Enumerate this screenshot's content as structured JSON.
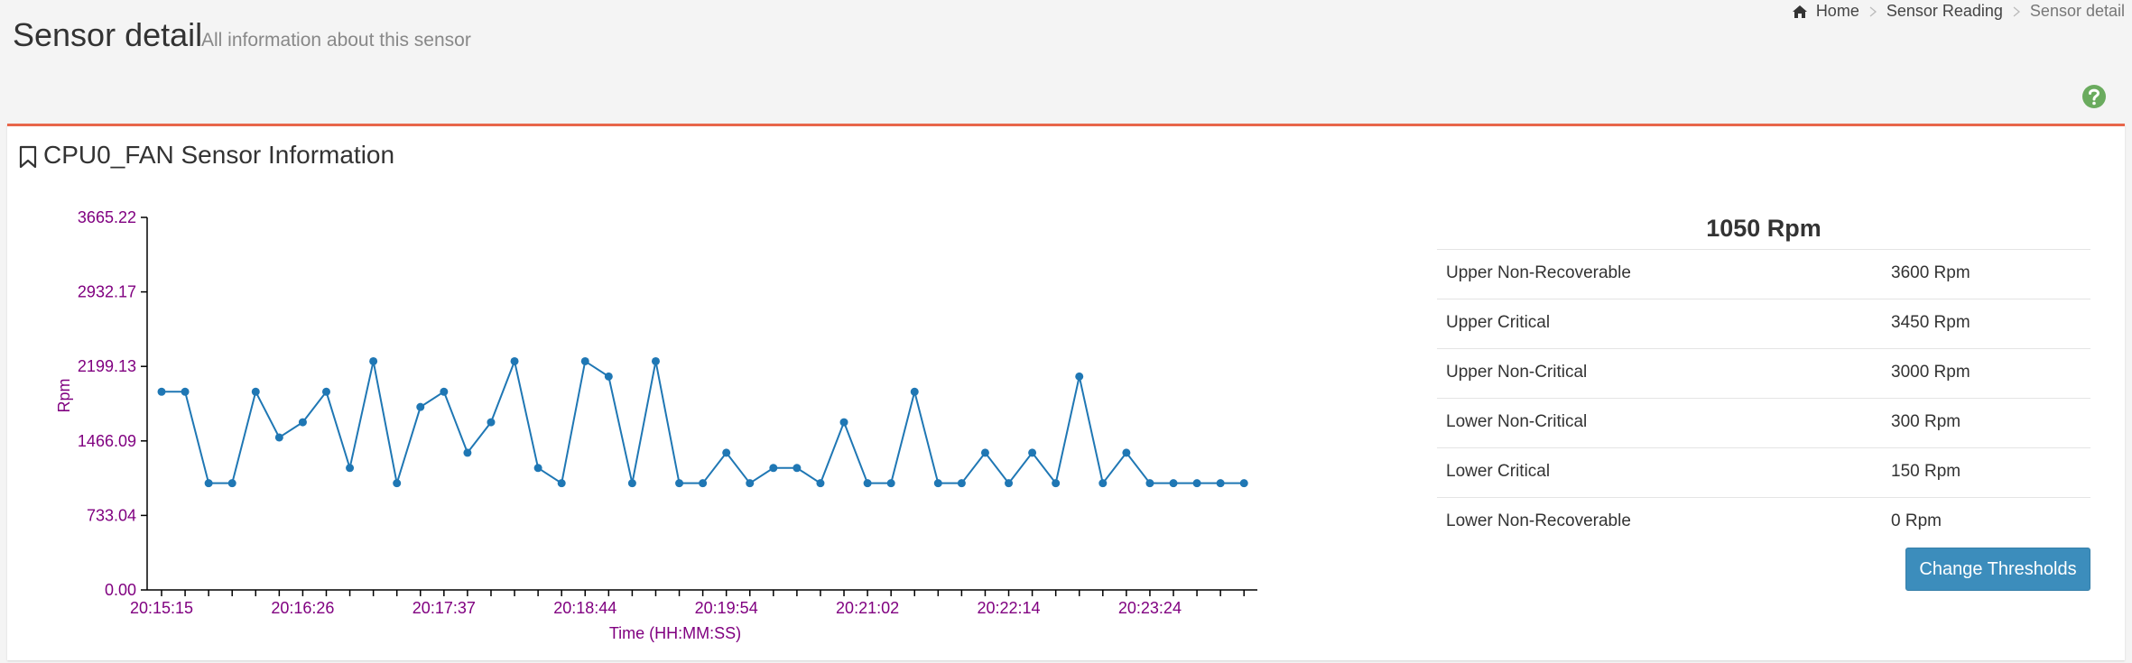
{
  "header": {
    "title": "Sensor detail",
    "subtitle": "All information about this sensor"
  },
  "breadcrumb": [
    "Home",
    "Sensor Reading",
    "Sensor detail"
  ],
  "box_title": "CPU0_FAN Sensor Information",
  "chart_data": {
    "type": "line",
    "categories": [
      "20:15:15",
      null,
      null,
      null,
      null,
      null,
      "20:16:26",
      null,
      null,
      null,
      null,
      null,
      "20:17:37",
      null,
      null,
      null,
      null,
      null,
      "20:18:44",
      null,
      null,
      null,
      null,
      null,
      "20:19:54",
      null,
      null,
      null,
      null,
      null,
      "20:21:02",
      null,
      null,
      null,
      null,
      null,
      "20:22:14",
      null,
      null,
      null,
      null,
      null,
      "20:23:24",
      null,
      null,
      null,
      null
    ],
    "values": [
      1950,
      1950,
      1050,
      1050,
      1950,
      1500,
      1650,
      1950,
      1200,
      2250,
      1050,
      1800,
      1950,
      1350,
      1650,
      2250,
      1200,
      1050,
      2250,
      2100,
      1050,
      2250,
      1050,
      1050,
      1350,
      1050,
      1200,
      1200,
      1050,
      1650,
      1050,
      1050,
      1950,
      1050,
      1050,
      1350,
      1050,
      1350,
      1050,
      2100,
      1050,
      1350,
      1050,
      1050,
      1050,
      1050,
      1050
    ],
    "color": "#1f77b4",
    "ylim": [
      0,
      3665.22
    ],
    "yticks": [
      {
        "value": 0,
        "label": "0.00"
      },
      733.04,
      1466.09,
      2199.13,
      2932.17,
      3665.22
    ],
    "xlabel": "Time (HH:MM:SS)",
    "ylabel": "Rpm"
  },
  "thresholds": {
    "current": "1050 Rpm",
    "rows": [
      [
        "Upper Non-Recoverable",
        "3600 Rpm"
      ],
      [
        "Upper Critical",
        "3450 Rpm"
      ],
      [
        "Upper Non-Critical",
        "3000 Rpm"
      ],
      [
        "Lower Non-Critical",
        "300 Rpm"
      ],
      [
        "Lower Critical",
        "150 Rpm"
      ],
      [
        "Lower Non-Recoverable",
        "0 Rpm"
      ]
    ]
  },
  "button": "Change Thresholds"
}
